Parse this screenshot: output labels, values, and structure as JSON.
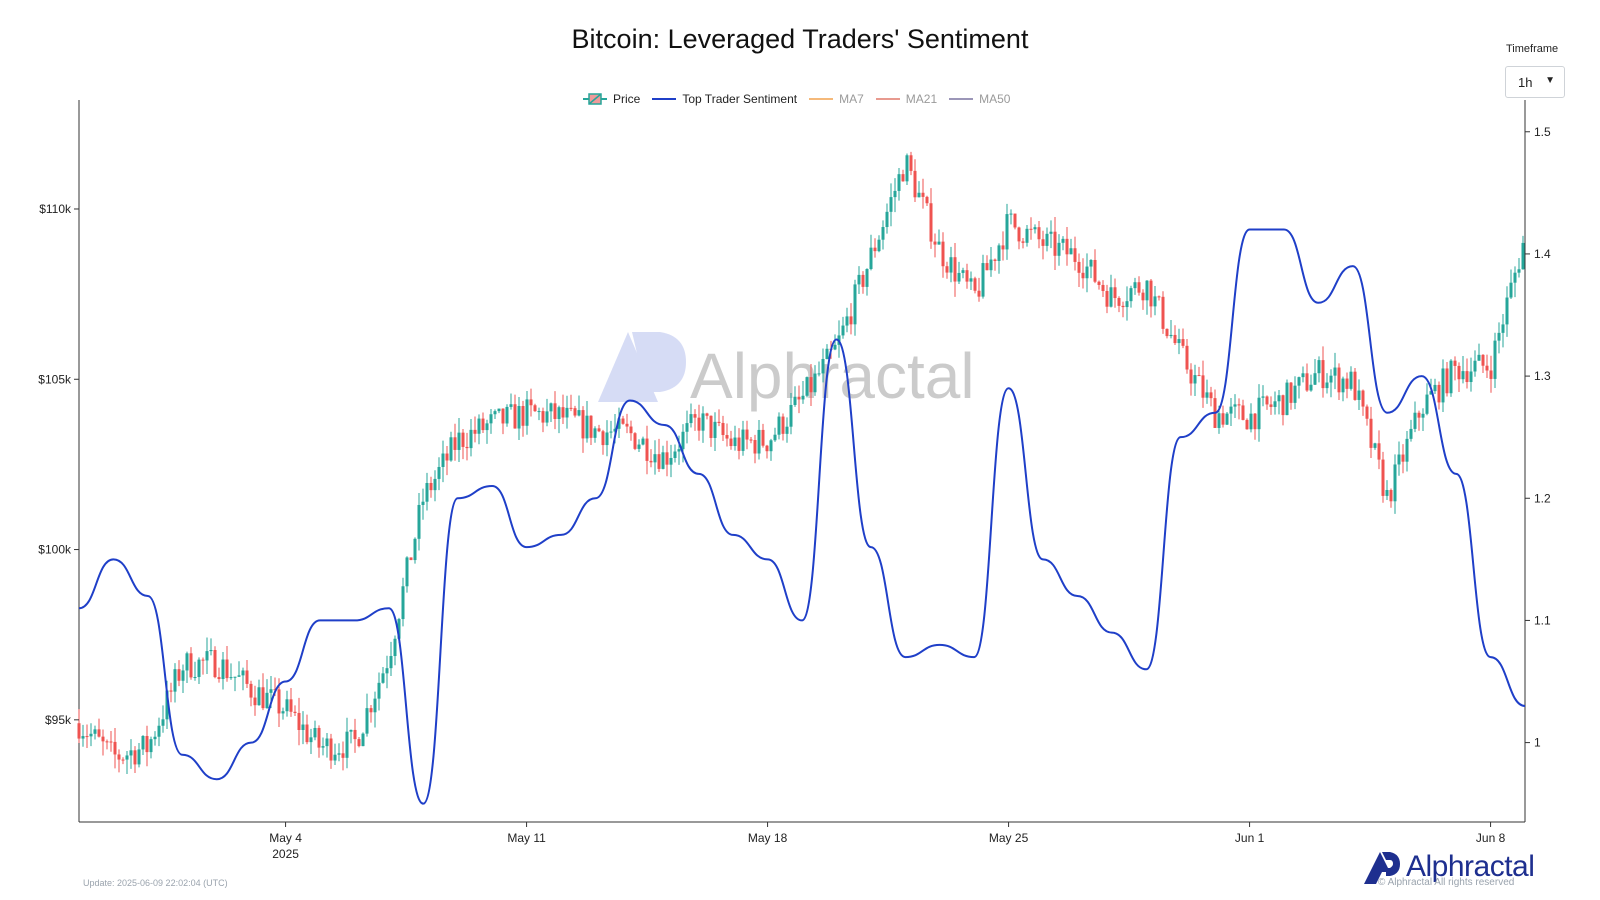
{
  "title": "Bitcoin: Leveraged Traders' Sentiment",
  "timeframe": {
    "label": "Timeframe",
    "value": "1h"
  },
  "legend": [
    {
      "label": "Price",
      "kind": "candle",
      "color": "#26a69a",
      "muted": false
    },
    {
      "label": "Top Trader Sentiment",
      "kind": "line",
      "color": "#1f3fc8",
      "muted": false
    },
    {
      "label": "MA7",
      "kind": "line",
      "color": "#f5b97a",
      "muted": true
    },
    {
      "label": "MA21",
      "kind": "line",
      "color": "#e89a8f",
      "muted": true
    },
    {
      "label": "MA50",
      "kind": "line",
      "color": "#9b96b8",
      "muted": true
    }
  ],
  "watermark": "Alphractal",
  "brand": "Alphractal",
  "footer": {
    "update": "Update: 2025-06-09 22:02:04 (UTC)",
    "rights": "© Alphractal All rights reserved"
  },
  "colors": {
    "up": "#26a69a",
    "down": "#ef5350",
    "sentiment": "#1f3fc8",
    "axis": "#333333",
    "brand": "#1e2f8f"
  },
  "chart_data": {
    "type": "candlestick+line",
    "title": "Bitcoin: Leveraged Traders' Sentiment",
    "x_range": [
      "2025-04-28",
      "2025-06-09"
    ],
    "x_ticks": [
      {
        "date": "2025-05-04",
        "label": "May 4",
        "sublabel": "2025"
      },
      {
        "date": "2025-05-11",
        "label": "May 11",
        "sublabel": ""
      },
      {
        "date": "2025-05-18",
        "label": "May 18",
        "sublabel": ""
      },
      {
        "date": "2025-05-25",
        "label": "May 25",
        "sublabel": ""
      },
      {
        "date": "2025-06-01",
        "label": "Jun 1",
        "sublabel": ""
      },
      {
        "date": "2025-06-08",
        "label": "Jun 8",
        "sublabel": ""
      }
    ],
    "y_left": {
      "label": "Price",
      "range": [
        92000,
        113200
      ],
      "ticks": [
        {
          "value": 95000,
          "label": "$95k"
        },
        {
          "value": 100000,
          "label": "$100k"
        },
        {
          "value": 105000,
          "label": "$105k"
        },
        {
          "value": 110000,
          "label": "$110k"
        }
      ]
    },
    "y_right": {
      "label": "Top Trader Sentiment",
      "range": [
        0.935,
        1.526
      ],
      "ticks": [
        {
          "value": 1.0,
          "label": "1"
        },
        {
          "value": 1.1,
          "label": "1.1"
        },
        {
          "value": 1.2,
          "label": "1.2"
        },
        {
          "value": 1.3,
          "label": "1.3"
        },
        {
          "value": 1.4,
          "label": "1.4"
        },
        {
          "value": 1.5,
          "label": "1.5"
        }
      ]
    },
    "price": {
      "name": "Price",
      "x": [
        "2025-04-28",
        "2025-04-29",
        "2025-04-30",
        "2025-05-01",
        "2025-05-02",
        "2025-05-03",
        "2025-05-04",
        "2025-05-05",
        "2025-05-06",
        "2025-05-07",
        "2025-05-08",
        "2025-05-09",
        "2025-05-10",
        "2025-05-11",
        "2025-05-12",
        "2025-05-13",
        "2025-05-14",
        "2025-05-15",
        "2025-05-16",
        "2025-05-17",
        "2025-05-18",
        "2025-05-19",
        "2025-05-20",
        "2025-05-21",
        "2025-05-22",
        "2025-05-23",
        "2025-05-24",
        "2025-05-25",
        "2025-05-26",
        "2025-05-27",
        "2025-05-28",
        "2025-05-29",
        "2025-05-30",
        "2025-05-31",
        "2025-06-01",
        "2025-06-02",
        "2025-06-03",
        "2025-06-04",
        "2025-06-05",
        "2025-06-06",
        "2025-06-07",
        "2025-06-08",
        "2025-06-09"
      ],
      "values": [
        94900,
        93900,
        94200,
        96600,
        96700,
        95900,
        95300,
        94200,
        94300,
        96900,
        101500,
        103200,
        103700,
        104000,
        103900,
        103500,
        103400,
        102700,
        103800,
        103100,
        103200,
        104400,
        105900,
        108600,
        111400,
        108800,
        107400,
        109600,
        109000,
        108600,
        107400,
        107800,
        105700,
        104000,
        103900,
        104400,
        105200,
        104900,
        101500,
        104200,
        105300,
        105400,
        109200
      ]
    },
    "sentiment": {
      "name": "Top Trader Sentiment",
      "x": [
        "2025-04-28",
        "2025-04-29",
        "2025-04-30",
        "2025-05-01",
        "2025-05-02",
        "2025-05-03",
        "2025-05-04",
        "2025-05-05",
        "2025-05-06",
        "2025-05-07",
        "2025-05-08",
        "2025-05-09",
        "2025-05-10",
        "2025-05-11",
        "2025-05-12",
        "2025-05-13",
        "2025-05-14",
        "2025-05-15",
        "2025-05-16",
        "2025-05-17",
        "2025-05-18",
        "2025-05-19",
        "2025-05-20",
        "2025-05-21",
        "2025-05-22",
        "2025-05-23",
        "2025-05-24",
        "2025-05-25",
        "2025-05-26",
        "2025-05-27",
        "2025-05-28",
        "2025-05-29",
        "2025-05-30",
        "2025-05-31",
        "2025-06-01",
        "2025-06-02",
        "2025-06-03",
        "2025-06-04",
        "2025-06-05",
        "2025-06-06",
        "2025-06-07",
        "2025-06-08",
        "2025-06-09"
      ],
      "values": [
        1.11,
        1.15,
        1.12,
        0.99,
        0.97,
        1.0,
        1.05,
        1.1,
        1.1,
        1.11,
        0.95,
        1.2,
        1.21,
        1.16,
        1.17,
        1.2,
        1.28,
        1.26,
        1.22,
        1.17,
        1.15,
        1.1,
        1.33,
        1.16,
        1.07,
        1.08,
        1.07,
        1.29,
        1.15,
        1.12,
        1.09,
        1.06,
        1.25,
        1.27,
        1.42,
        1.42,
        1.36,
        1.39,
        1.27,
        1.3,
        1.22,
        1.07,
        1.03
      ]
    },
    "grid": false,
    "legend_position": "top-center"
  }
}
